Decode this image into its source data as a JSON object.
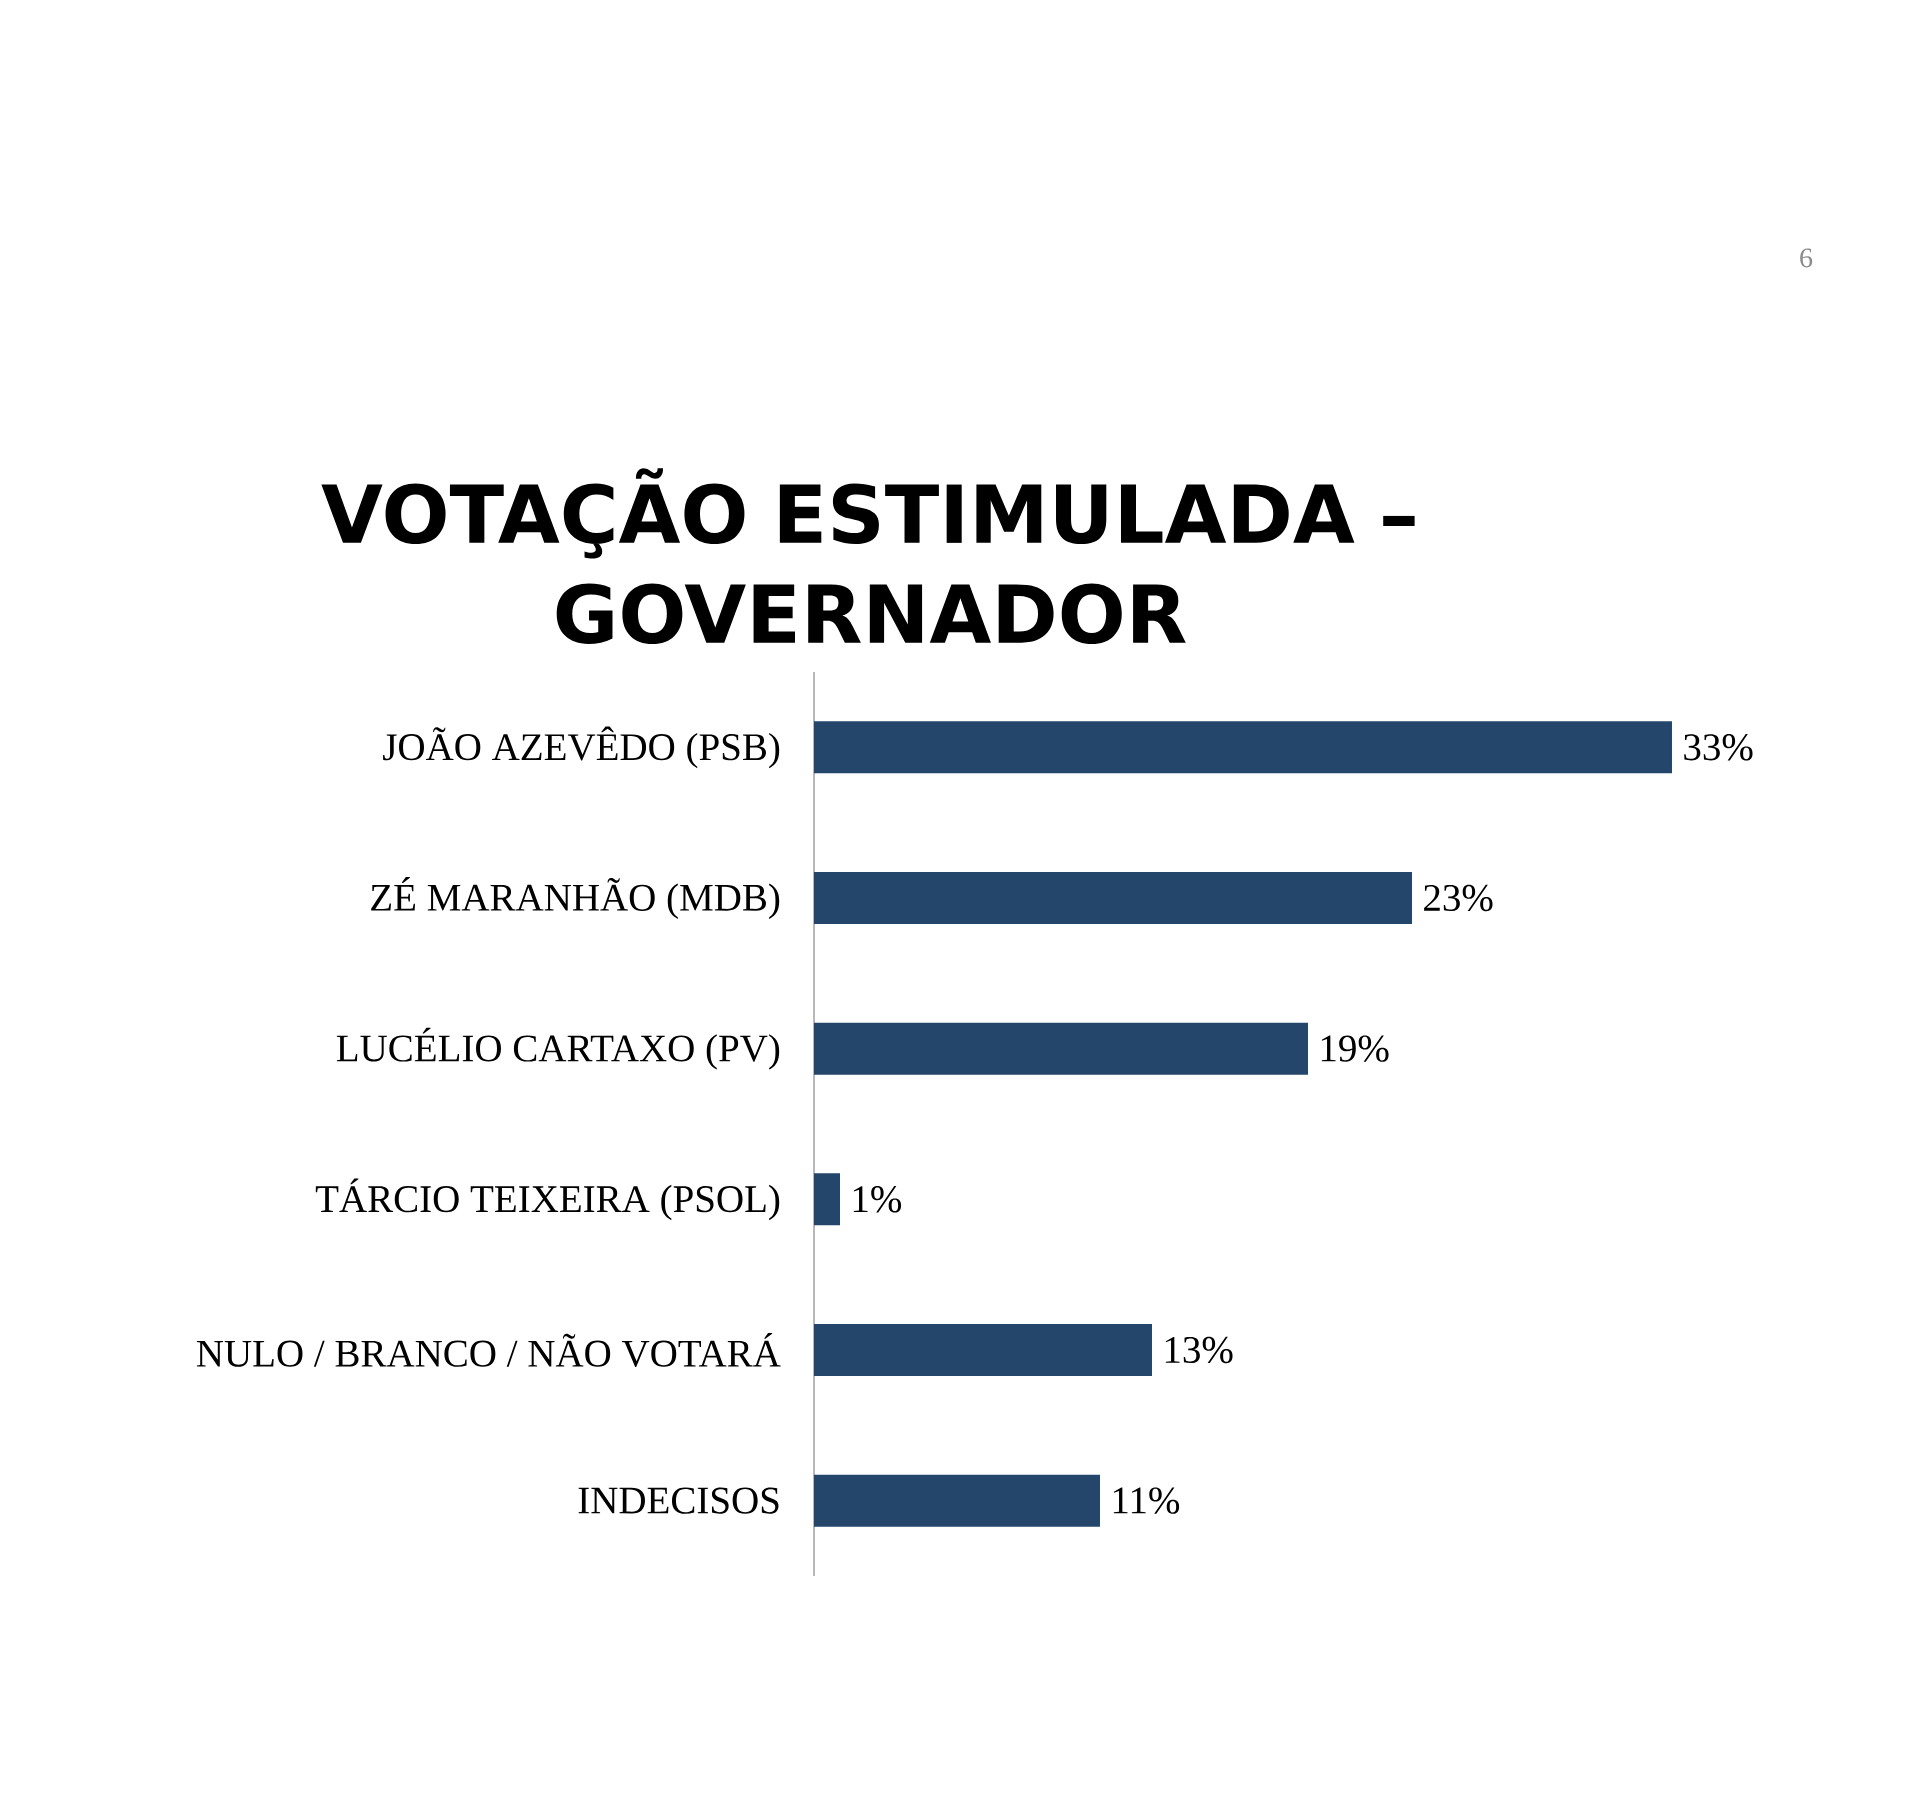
{
  "chart_data": {
    "type": "bar",
    "orientation": "horizontal",
    "title": "VOTAÇÃO ESTIMULADA – GOVERNADOR",
    "categories": [
      "JOÃO AZEVÊDO (PSB)",
      "ZÉ MARANHÃO (MDB)",
      "LUCÉLIO CARTAXO (PV)",
      "TÁRCIO TEIXEIRA (PSOL)",
      "NULO / BRANCO / NÃO VOTARÁ",
      "INDECISOS"
    ],
    "values": [
      33,
      23,
      19,
      1,
      13,
      11
    ],
    "value_labels": [
      "33%",
      "23%",
      "19%",
      "1%",
      "13%",
      "11%"
    ],
    "color": "#24466b",
    "annotations": [
      "6"
    ]
  }
}
